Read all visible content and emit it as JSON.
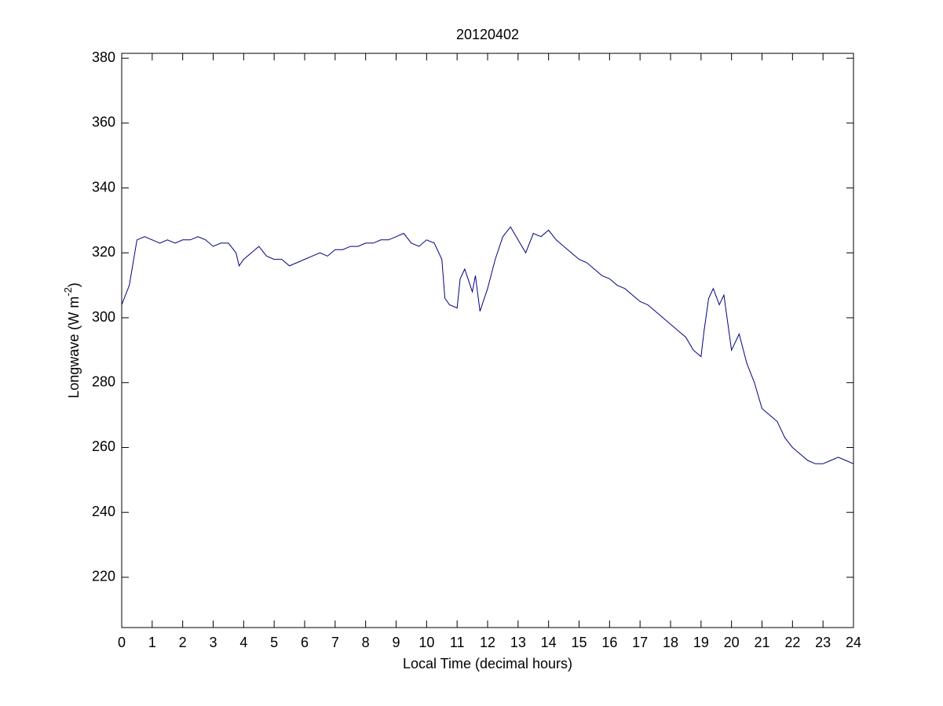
{
  "chart_data": {
    "type": "line",
    "title": "20120402",
    "xlabel": "Local Time (decimal hours)",
    "ylabel": {
      "text": "Longwave (W m",
      "superscript": "-2",
      "suffix": ")"
    },
    "x": [
      0,
      0.25,
      0.5,
      0.75,
      1,
      1.25,
      1.5,
      1.75,
      2,
      2.25,
      2.5,
      2.75,
      3,
      3.25,
      3.5,
      3.75,
      3.85,
      4,
      4.25,
      4.5,
      4.75,
      5,
      5.25,
      5.5,
      5.75,
      6,
      6.25,
      6.5,
      6.75,
      7,
      7.25,
      7.5,
      7.75,
      8,
      8.25,
      8.5,
      8.75,
      9,
      9.25,
      9.5,
      9.75,
      10,
      10.25,
      10.5,
      10.6,
      10.75,
      11,
      11.1,
      11.25,
      11.5,
      11.6,
      11.75,
      12,
      12.25,
      12.5,
      12.75,
      13,
      13.25,
      13.5,
      13.75,
      14,
      14.25,
      14.5,
      14.75,
      15,
      15.25,
      15.5,
      15.75,
      16,
      16.25,
      16.5,
      16.75,
      17,
      17.25,
      17.5,
      17.75,
      18,
      18.25,
      18.5,
      18.75,
      19,
      19.1,
      19.25,
      19.4,
      19.6,
      19.75,
      20,
      20.25,
      20.5,
      20.75,
      21,
      21.25,
      21.5,
      21.75,
      22,
      22.25,
      22.5,
      22.75,
      23,
      23.25,
      23.5,
      23.75,
      24
    ],
    "series": [
      {
        "color": "#000080",
        "values": [
          304,
          310,
          324,
          325,
          324,
          323,
          324,
          323,
          324,
          324,
          325,
          324,
          322,
          323,
          323,
          320,
          316,
          318,
          320,
          322,
          319,
          318,
          318,
          316,
          317,
          318,
          319,
          320,
          319,
          321,
          321,
          322,
          322,
          323,
          323,
          324,
          324,
          325,
          326,
          323,
          322,
          324,
          323,
          318,
          306,
          304,
          303,
          312,
          315,
          308,
          313,
          302,
          309,
          318,
          325,
          328,
          324,
          320,
          326,
          325,
          327,
          324,
          322,
          320,
          318,
          317,
          315,
          313,
          312,
          310,
          309,
          307,
          305,
          304,
          302,
          300,
          298,
          296,
          294,
          290,
          288,
          296,
          306,
          309,
          304,
          307,
          290,
          295,
          286,
          280,
          272,
          270,
          268,
          263,
          260,
          258,
          256,
          255,
          255,
          256,
          257,
          256,
          255
        ]
      }
    ],
    "xlim": [
      0,
      24
    ],
    "xticks": [
      0,
      1,
      2,
      3,
      4,
      5,
      6,
      7,
      8,
      9,
      10,
      11,
      12,
      13,
      14,
      15,
      16,
      17,
      18,
      19,
      20,
      21,
      22,
      23,
      24
    ],
    "ylim": [
      204.5,
      381.5
    ],
    "yticks": [
      220,
      240,
      260,
      280,
      300,
      320,
      340,
      360,
      380
    ],
    "grid": false
  }
}
